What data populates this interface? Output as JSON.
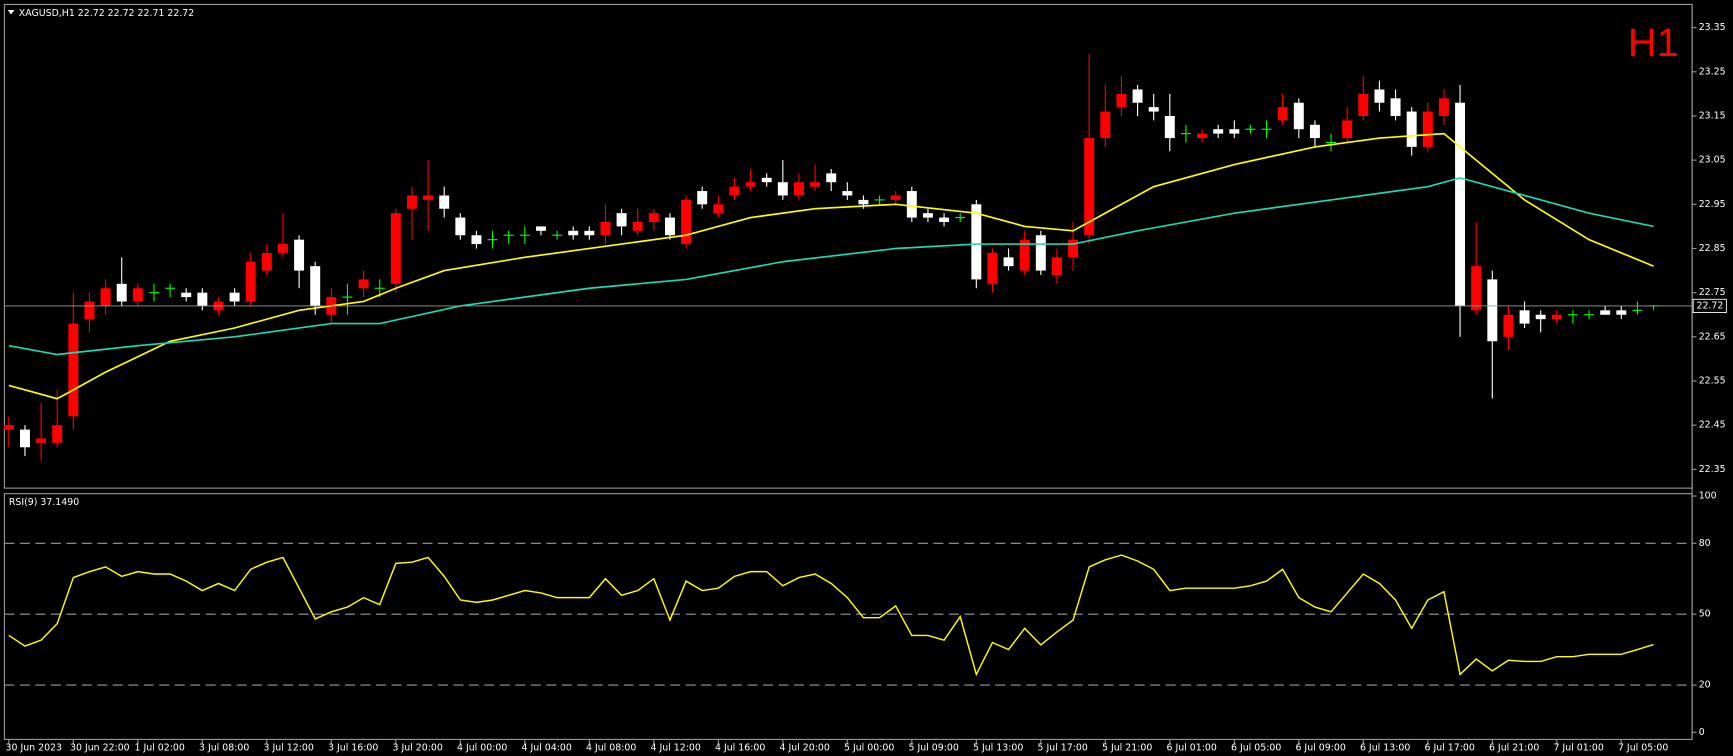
{
  "chart_data": [
    {
      "type": "candlestick",
      "title": "XAGUSD,H1  22.72 22.72 22.71 22.72",
      "annotation": "H1",
      "open": [
        22.44,
        22.44,
        22.41,
        22.41,
        22.47,
        22.69,
        22.72,
        22.77,
        22.73,
        22.75,
        22.76,
        22.75,
        22.75,
        22.71,
        22.75,
        22.73,
        22.8,
        22.84,
        22.87,
        22.81,
        22.7,
        22.74,
        22.76,
        22.76,
        22.77,
        22.94,
        22.96,
        22.97,
        22.92,
        22.88,
        22.87,
        22.88,
        22.88,
        22.9,
        22.88,
        22.89,
        22.89,
        22.88,
        22.93,
        22.89,
        22.91,
        22.92,
        22.86,
        22.98,
        22.93,
        22.97,
        22.99,
        23.01,
        23.0,
        22.97,
        22.99,
        23.02,
        22.98,
        22.96,
        22.96,
        22.96,
        22.98,
        22.93,
        22.92,
        22.92,
        22.95,
        22.77,
        22.83,
        22.8,
        22.88,
        22.79,
        22.83,
        22.88,
        23.1,
        23.17,
        23.21,
        23.17,
        23.15,
        23.11,
        23.1,
        23.12,
        23.12,
        23.12,
        23.12,
        23.14,
        23.18,
        23.13,
        23.09,
        23.1,
        23.15,
        23.21,
        23.19,
        23.16,
        23.08,
        23.15,
        23.18,
        22.71,
        22.78,
        22.65,
        22.71,
        22.7,
        22.69,
        22.7,
        22.7,
        22.71,
        22.71,
        22.71,
        22.72
      ],
      "high": [
        22.47,
        22.45,
        22.5,
        22.53,
        22.75,
        22.75,
        22.78,
        22.83,
        22.77,
        22.77,
        22.77,
        22.76,
        22.76,
        22.74,
        22.76,
        22.84,
        22.86,
        22.93,
        22.88,
        22.82,
        22.76,
        22.77,
        22.8,
        22.78,
        22.94,
        22.99,
        23.05,
        22.99,
        22.93,
        22.89,
        22.89,
        22.89,
        22.9,
        22.9,
        22.89,
        22.9,
        22.9,
        22.95,
        22.94,
        22.94,
        22.94,
        22.93,
        22.97,
        22.99,
        22.97,
        23.01,
        23.03,
        23.02,
        23.05,
        23.02,
        23.04,
        23.03,
        23.0,
        22.97,
        22.97,
        22.98,
        22.99,
        22.94,
        22.93,
        22.93,
        22.96,
        22.85,
        22.85,
        22.89,
        22.89,
        22.85,
        22.91,
        23.29,
        23.22,
        23.24,
        23.22,
        23.2,
        23.2,
        23.13,
        23.12,
        23.13,
        23.14,
        23.13,
        23.14,
        23.2,
        23.19,
        23.14,
        23.11,
        23.17,
        23.24,
        23.23,
        23.21,
        23.17,
        23.18,
        23.21,
        23.22,
        22.91,
        22.8,
        22.72,
        22.73,
        22.71,
        22.71,
        22.71,
        22.71,
        22.72,
        22.72,
        22.73,
        22.72
      ],
      "low": [
        22.4,
        22.38,
        22.37,
        22.4,
        22.44,
        22.66,
        22.7,
        22.72,
        22.72,
        22.73,
        22.74,
        22.73,
        22.71,
        22.7,
        22.72,
        22.72,
        22.79,
        22.83,
        22.76,
        22.7,
        22.68,
        22.7,
        22.74,
        22.74,
        22.75,
        22.87,
        22.89,
        22.92,
        22.87,
        22.85,
        22.85,
        22.86,
        22.86,
        22.88,
        22.87,
        22.87,
        22.87,
        22.86,
        22.88,
        22.88,
        22.89,
        22.87,
        22.85,
        22.94,
        22.92,
        22.96,
        22.98,
        22.99,
        22.96,
        22.96,
        22.98,
        22.98,
        22.96,
        22.94,
        22.95,
        22.95,
        22.91,
        22.91,
        22.9,
        22.91,
        22.76,
        22.75,
        22.8,
        22.79,
        22.79,
        22.77,
        22.8,
        22.86,
        23.08,
        23.15,
        23.15,
        23.14,
        23.07,
        23.09,
        23.09,
        23.1,
        23.1,
        23.11,
        23.1,
        23.13,
        23.1,
        23.08,
        23.07,
        23.09,
        23.14,
        23.16,
        23.14,
        23.06,
        23.07,
        23.13,
        22.65,
        22.7,
        22.51,
        22.62,
        22.67,
        22.66,
        22.68,
        22.68,
        22.69,
        22.7,
        22.69,
        22.7,
        22.71
      ],
      "close": [
        22.45,
        22.4,
        22.42,
        22.45,
        22.68,
        22.73,
        22.76,
        22.73,
        22.76,
        22.75,
        22.76,
        22.74,
        22.72,
        22.73,
        22.73,
        22.82,
        22.84,
        22.86,
        22.8,
        22.72,
        22.74,
        22.74,
        22.78,
        22.76,
        22.93,
        22.97,
        22.97,
        22.94,
        22.88,
        22.86,
        22.87,
        22.88,
        22.88,
        22.89,
        22.88,
        22.88,
        22.88,
        22.91,
        22.9,
        22.91,
        22.93,
        22.88,
        22.96,
        22.95,
        22.95,
        22.99,
        23.0,
        23.0,
        22.97,
        23.0,
        23.0,
        23.0,
        22.97,
        22.95,
        22.96,
        22.97,
        22.92,
        22.92,
        22.91,
        22.92,
        22.78,
        22.84,
        22.81,
        22.87,
        22.8,
        22.83,
        22.87,
        23.1,
        23.16,
        23.2,
        23.18,
        23.16,
        23.1,
        23.11,
        23.11,
        23.11,
        23.11,
        23.12,
        23.12,
        23.17,
        23.12,
        23.1,
        23.09,
        23.14,
        23.2,
        23.18,
        23.15,
        23.08,
        23.16,
        23.19,
        22.72,
        22.81,
        22.64,
        22.7,
        22.68,
        22.69,
        22.7,
        22.7,
        22.7,
        22.7,
        22.7,
        22.71,
        22.72
      ],
      "up_color": "#ff0000",
      "down_color": "#ffffff",
      "doji_color": "#00ff00",
      "overlays": [
        {
          "color": "#ffff00",
          "x": [
            0,
            3,
            6,
            10,
            14,
            18,
            22,
            24,
            27,
            32,
            38,
            42,
            46,
            50,
            55,
            60,
            63,
            66,
            68,
            71,
            76,
            81,
            85,
            89,
            91,
            94,
            98,
            102
          ],
          "values": [
            22.54,
            22.51,
            22.57,
            22.64,
            22.67,
            22.71,
            22.73,
            22.76,
            22.8,
            22.83,
            22.86,
            22.88,
            22.92,
            22.94,
            22.95,
            22.93,
            22.9,
            22.89,
            22.93,
            22.99,
            23.04,
            23.08,
            23.1,
            23.11,
            23.05,
            22.96,
            22.87,
            22.81
          ]
        },
        {
          "color": "#20d8b0",
          "x": [
            0,
            3,
            8,
            14,
            20,
            23,
            28,
            36,
            42,
            48,
            55,
            60,
            66,
            70,
            76,
            82,
            88,
            90,
            94,
            98,
            102
          ],
          "values": [
            22.63,
            22.61,
            22.63,
            22.65,
            22.68,
            22.68,
            22.72,
            22.76,
            22.78,
            22.82,
            22.85,
            22.86,
            22.86,
            22.89,
            22.93,
            22.96,
            22.99,
            23.01,
            22.97,
            22.93,
            22.9
          ]
        }
      ],
      "current_price": 22.72,
      "ylim": [
        22.31,
        23.4
      ],
      "yticks": [
        23.35,
        23.25,
        23.15,
        23.05,
        22.95,
        22.85,
        22.75,
        22.65,
        22.55,
        22.45,
        22.35
      ]
    },
    {
      "type": "line",
      "title": "RSI(9) 37.1490",
      "color": "#ffff00",
      "categories": [
        "30 Jun 2023",
        null,
        null,
        null,
        "30 Jun 22:00",
        null,
        null,
        null,
        "1 Jul 02:00",
        null,
        null,
        null,
        "3 Jul 08:00",
        null,
        null,
        null,
        "3 Jul 12:00",
        null,
        null,
        null,
        "3 Jul 16:00",
        null,
        null,
        null,
        "3 Jul 20:00",
        null,
        null,
        null,
        "4 Jul 00:00",
        null,
        null,
        null,
        "4 Jul 04:00",
        null,
        null,
        null,
        "4 Jul 08:00",
        null,
        null,
        null,
        "4 Jul 12:00",
        null,
        null,
        null,
        "4 Jul 16:00",
        null,
        null,
        null,
        "4 Jul 20:00",
        null,
        null,
        null,
        "5 Jul 00:00",
        null,
        null,
        null,
        "5 Jul 09:00",
        null,
        null,
        null,
        "5 Jul 13:00",
        null,
        null,
        null,
        "5 Jul 17:00",
        null,
        null,
        null,
        "5 Jul 21:00",
        null,
        null,
        null,
        "6 Jul 01:00",
        null,
        null,
        null,
        "6 Jul 05:00",
        null,
        null,
        null,
        "6 Jul 09:00",
        null,
        null,
        null,
        "6 Jul 13:00",
        null,
        null,
        null,
        "6 Jul 17:00",
        null,
        null,
        null,
        "6 Jul 21:00",
        null,
        null,
        null,
        "7 Jul 01:00",
        null,
        null,
        null,
        "7 Jul 05:00",
        null,
        null
      ],
      "values": [
        41,
        36.5,
        39,
        46,
        65.5,
        68,
        70,
        66,
        68,
        67,
        67,
        64,
        60,
        63,
        60,
        69,
        72,
        74,
        61,
        48,
        51,
        53,
        57,
        54,
        71.5,
        72,
        74,
        66,
        56,
        55,
        56,
        58,
        60,
        59,
        57,
        57,
        57,
        65,
        58,
        60,
        65,
        47.5,
        64,
        60,
        61,
        66,
        68,
        68,
        62,
        65.5,
        67,
        63,
        57,
        48.5,
        48.5,
        53.5,
        41,
        41,
        39,
        49,
        24.5,
        38,
        35,
        44,
        37,
        42.5,
        47.5,
        70,
        73,
        75,
        72.5,
        69,
        60,
        61,
        61,
        61,
        61,
        62,
        64,
        69,
        57,
        53,
        51,
        59,
        67,
        63,
        56,
        44,
        56,
        59.5,
        24.5,
        31,
        26,
        30.5,
        30,
        30,
        32,
        32,
        33,
        33,
        33,
        35,
        37.149
      ],
      "levels": [
        20,
        50,
        80
      ],
      "ylim": [
        -3,
        101
      ],
      "yticks": [
        0,
        20,
        50,
        80,
        100
      ]
    }
  ]
}
